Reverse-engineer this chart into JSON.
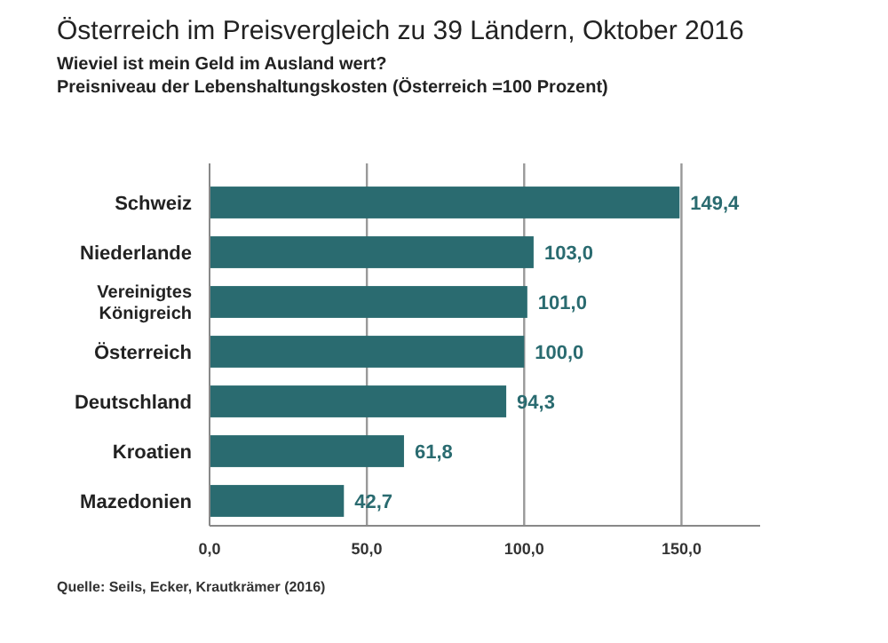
{
  "chart_data": {
    "type": "bar",
    "orientation": "horizontal",
    "title": "Österreich im Preisvergleich zu 39 Ländern, Oktober 2016",
    "subtitle": "Wieviel ist mein Geld im Ausland wert?\nPreisniveau der Lebenshaltungskosten (Österreich =100 Prozent)",
    "categories": [
      "Schweiz",
      "Niederlande",
      "Vereinigtes Königreich",
      "Österreich",
      "Deutschland",
      "Kroatien",
      "Mazedonien"
    ],
    "values": [
      149.4,
      103.0,
      101.0,
      100.0,
      94.3,
      61.8,
      42.7
    ],
    "value_labels": [
      "149,4",
      "103,0",
      "101,0",
      "100,0",
      "94,3",
      "61,8",
      "42,7"
    ],
    "color": "#2a6b70",
    "xlim": [
      0,
      175
    ],
    "xticks": [
      {
        "value": 0,
        "label": "0,0"
      },
      {
        "value": 50,
        "label": "50,0"
      },
      {
        "value": 100,
        "label": "100,0"
      },
      {
        "value": 150,
        "label": "150,0"
      }
    ],
    "grid": "x",
    "annotations": [
      "Quelle: Seils, Ecker, Krautkrämer (2016)"
    ]
  }
}
